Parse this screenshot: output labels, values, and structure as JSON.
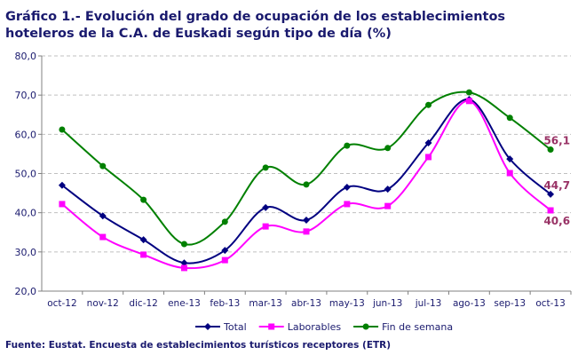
{
  "chart_data": {
    "type": "line",
    "title": "Gráfico 1.-  Evolución del grado de ocupación de los establecimientos hoteleros de la C.A. de Euskadi según tipo de día (%)",
    "source": "Fuente: Eustat. Encuesta de establecimientos turísticos receptores (ETR)",
    "categories": [
      "oct-12",
      "nov-12",
      "dic-12",
      "ene-13",
      "feb-13",
      "mar-13",
      "abr-13",
      "may-13",
      "jun-13",
      "jul-13",
      "ago-13",
      "sep-13",
      "oct-13"
    ],
    "ylim": [
      20,
      80
    ],
    "yticks": [
      "20,0",
      "30,0",
      "40,0",
      "50,0",
      "60,0",
      "70,0",
      "80,0"
    ],
    "grid": true,
    "legend_position": "bottom",
    "series": [
      {
        "name": "Total",
        "color": "#000080",
        "marker": "diamond",
        "values": [
          47.0,
          39.2,
          33.1,
          27.2,
          30.4,
          41.3,
          38.1,
          46.5,
          46.0,
          57.8,
          68.9,
          53.7,
          44.7
        ],
        "last_label": "44,7"
      },
      {
        "name": "Laborables",
        "color": "#ff00ff",
        "marker": "square",
        "values": [
          42.2,
          33.8,
          29.3,
          25.9,
          27.9,
          36.5,
          35.2,
          42.2,
          41.7,
          54.2,
          68.5,
          50.1,
          40.6
        ],
        "last_label": "40,6"
      },
      {
        "name": "Fin de semana",
        "color": "#008000",
        "marker": "circle",
        "values": [
          61.2,
          51.9,
          43.3,
          32.0,
          37.7,
          51.5,
          47.2,
          57.1,
          56.5,
          67.5,
          70.7,
          64.2,
          56.1
        ],
        "last_label": "56,1"
      }
    ],
    "label_color": "#993366"
  }
}
